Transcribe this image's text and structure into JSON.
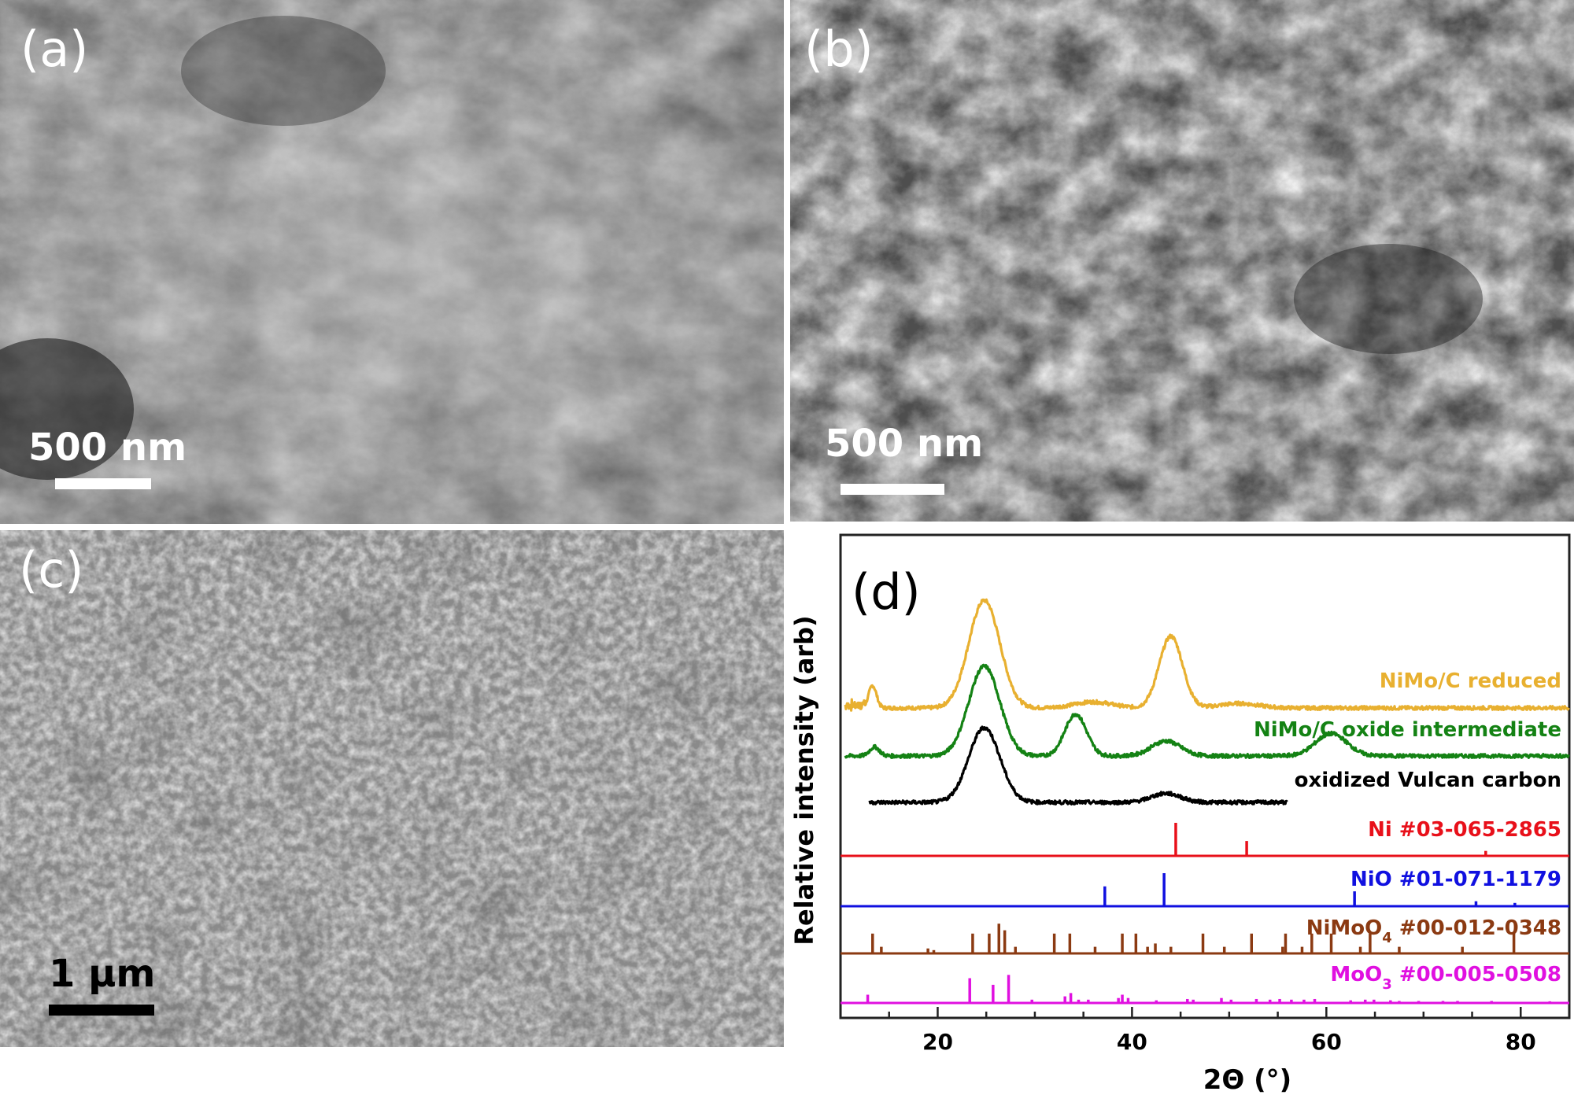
{
  "panels": {
    "a": {
      "label": "(a)",
      "scale": "500 nm"
    },
    "b": {
      "label": "(b)",
      "scale": "500 nm"
    },
    "c": {
      "label": "(c)",
      "scale": "1 μm"
    },
    "d": {
      "label": "(d)"
    }
  },
  "chart_data": {
    "type": "line",
    "xlabel": "2Θ (°)",
    "ylabel": "Relative intensity (arb)",
    "xlim": [
      10,
      85
    ],
    "xticks": [
      20,
      40,
      60,
      80
    ],
    "grid": false,
    "series": [
      {
        "name": "NiMo/C reduced",
        "color": "#e8b030",
        "peaks": [
          [
            13.3,
            0.15,
            0.4
          ],
          [
            24.8,
            0.72,
            1.6
          ],
          [
            36,
            0.04,
            2
          ],
          [
            44,
            0.48,
            1.2
          ],
          [
            51,
            0.03,
            2
          ]
        ]
      },
      {
        "name": "NiMo/C oxide intermediate",
        "color": "#148214",
        "peaks": [
          [
            13.5,
            0.06,
            0.5
          ],
          [
            24.8,
            0.6,
            1.6
          ],
          [
            34.2,
            0.28,
            1.1
          ],
          [
            43.5,
            0.1,
            1.5
          ],
          [
            60.5,
            0.15,
            1.6
          ]
        ]
      },
      {
        "name": "oxidized Vulcan carbon",
        "color": "#000000",
        "peaks": [
          [
            24.8,
            0.5,
            1.6
          ],
          [
            43.5,
            0.06,
            1.5
          ]
        ]
      }
    ],
    "references": [
      {
        "name": "Ni #03-065-2865",
        "color": "#e8101a",
        "lines": [
          [
            44.5,
            1.0
          ],
          [
            51.8,
            0.45
          ],
          [
            76.4,
            0.15
          ]
        ]
      },
      {
        "name": "NiO #01-071-1179",
        "color": "#1010e0",
        "lines": [
          [
            37.2,
            0.6
          ],
          [
            43.3,
            1.0
          ],
          [
            62.9,
            0.45
          ],
          [
            75.4,
            0.15
          ],
          [
            79.4,
            0.1
          ]
        ]
      },
      {
        "name": "NiMoO",
        "name_sub": "4",
        "name_rest": " #00-012-0348",
        "color": "#8b3a12",
        "lines": [
          [
            13.3,
            0.6
          ],
          [
            14.2,
            0.2
          ],
          [
            19.0,
            0.15
          ],
          [
            19.6,
            0.1
          ],
          [
            23.6,
            0.6
          ],
          [
            25.3,
            0.6
          ],
          [
            26.3,
            0.9
          ],
          [
            26.9,
            0.7
          ],
          [
            28.0,
            0.2
          ],
          [
            32.0,
            0.6
          ],
          [
            33.6,
            0.6
          ],
          [
            36.2,
            0.2
          ],
          [
            39.0,
            0.6
          ],
          [
            40.4,
            0.6
          ],
          [
            41.6,
            0.2
          ],
          [
            42.4,
            0.3
          ],
          [
            44.0,
            0.2
          ],
          [
            47.3,
            0.6
          ],
          [
            49.5,
            0.2
          ],
          [
            52.3,
            0.6
          ],
          [
            55.5,
            0.2
          ],
          [
            55.8,
            0.6
          ],
          [
            57.5,
            0.2
          ],
          [
            58.5,
            0.6
          ],
          [
            60.5,
            0.6
          ],
          [
            63.5,
            0.2
          ],
          [
            64.5,
            0.6
          ],
          [
            67.5,
            0.2
          ],
          [
            74.0,
            0.2
          ],
          [
            79.3,
            0.6
          ]
        ]
      },
      {
        "name": "MoO",
        "name_sub": "3",
        "name_rest": " #00-005-0508",
        "color": "#e010e0",
        "lines": [
          [
            12.8,
            0.25
          ],
          [
            23.3,
            0.75
          ],
          [
            25.7,
            0.55
          ],
          [
            27.3,
            0.85
          ],
          [
            29.7,
            0.1
          ],
          [
            33.1,
            0.2
          ],
          [
            33.7,
            0.3
          ],
          [
            34.5,
            0.1
          ],
          [
            35.5,
            0.1
          ],
          [
            38.6,
            0.15
          ],
          [
            39.0,
            0.25
          ],
          [
            39.6,
            0.15
          ],
          [
            42.5,
            0.08
          ],
          [
            45.7,
            0.12
          ],
          [
            46.3,
            0.1
          ],
          [
            49.2,
            0.15
          ],
          [
            50.2,
            0.1
          ],
          [
            52.8,
            0.12
          ],
          [
            54.2,
            0.1
          ],
          [
            55.2,
            0.12
          ],
          [
            56.4,
            0.1
          ],
          [
            57.7,
            0.1
          ],
          [
            58.8,
            0.12
          ],
          [
            62.5,
            0.08
          ],
          [
            64.0,
            0.1
          ],
          [
            64.9,
            0.1
          ],
          [
            66.6,
            0.08
          ],
          [
            67.5,
            0.06
          ],
          [
            69.5,
            0.06
          ],
          [
            72.0,
            0.06
          ],
          [
            73.5,
            0.06
          ],
          [
            77.0,
            0.06
          ],
          [
            83.0,
            0.05
          ]
        ]
      }
    ]
  }
}
